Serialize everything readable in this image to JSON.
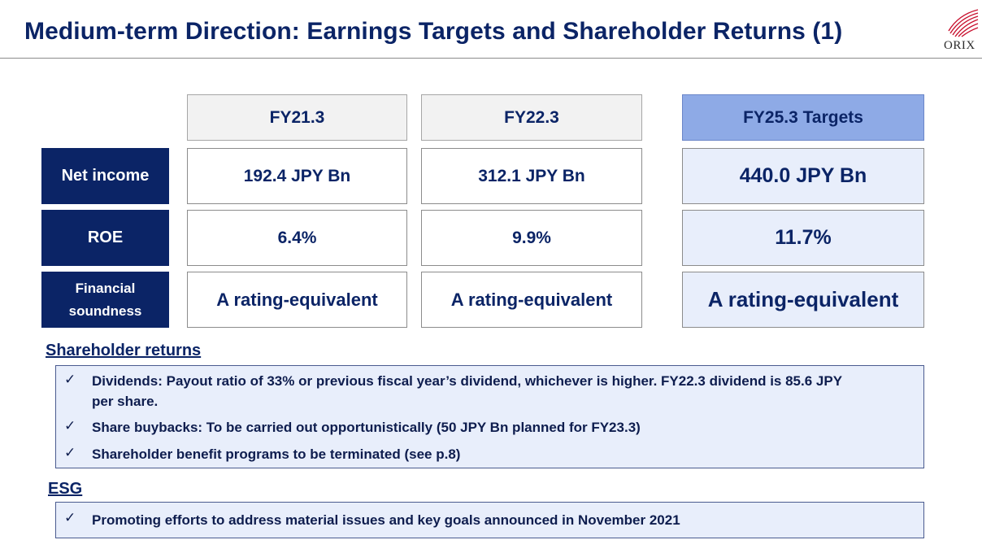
{
  "header": {
    "title": "Medium-term Direction: Earnings Targets and Shareholder Returns (1)",
    "logo_text": "ORIX"
  },
  "table": {
    "columns": [
      "FY21.3",
      "FY22.3",
      "FY25.3 Targets"
    ],
    "rows": [
      {
        "label": "Net income",
        "values": [
          "192.4 JPY Bn",
          "312.1 JPY Bn",
          "440.0 JPY Bn"
        ]
      },
      {
        "label": "ROE",
        "values": [
          "6.4%",
          "9.9%",
          "11.7%"
        ]
      },
      {
        "label_line1": "Financial",
        "label_line2": "soundness",
        "values": [
          "A rating-equivalent",
          "A rating-equivalent",
          "A rating-equivalent"
        ]
      }
    ]
  },
  "shareholder_returns": {
    "heading": "Shareholder returns",
    "items": [
      {
        "check": "✓",
        "line1": "Dividends: Payout ratio of 33% or previous fiscal year’s dividend, whichever is higher. FY22.3 dividend is 85.6 JPY",
        "line2": "per share."
      },
      {
        "check": "✓",
        "line1": "Share buybacks: To be carried out opportunistically (50 JPY Bn planned for FY23.3)"
      },
      {
        "check": "✓",
        "line1": "Shareholder benefit programs to be terminated (see p.8)"
      }
    ]
  },
  "esg": {
    "heading": "ESG",
    "items": [
      {
        "check": "✓",
        "line1": "Promoting efforts to address material issues and key goals announced in November 2021"
      }
    ]
  },
  "colors": {
    "navy": "#0b2466",
    "target_header": "#8eaae6",
    "target_cell": "#e8eefb"
  }
}
